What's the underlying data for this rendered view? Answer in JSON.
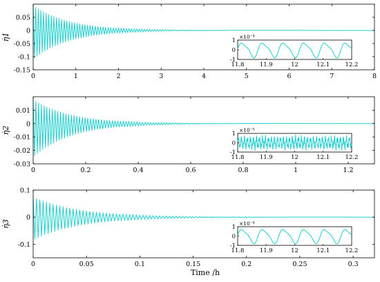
{
  "figure": {
    "xlabel": "Time /h",
    "colors": {
      "signal": "#1dcfcf",
      "axes": "#000000",
      "background": "#ffffff"
    }
  },
  "chart_data": [
    {
      "type": "line",
      "ylabel": "η̇1",
      "xlim": [
        0,
        8
      ],
      "ylim": [
        -0.15,
        0.1
      ],
      "xticks": [
        "0",
        "1",
        "2",
        "3",
        "4",
        "5",
        "6",
        "7",
        "8"
      ],
      "yticks": [
        "-0.15",
        "-0.1",
        "-0.05",
        "0",
        "0.05"
      ],
      "yticks_values": [
        -0.15,
        -0.1,
        -0.05,
        0,
        0.05
      ],
      "signal": {
        "shape": "decaying oscillation",
        "initial_peak_positive": 0.095,
        "initial_peak_negative": -0.11,
        "settle_time": 3.5
      },
      "inset": {
        "xlim": [
          11.8,
          12.2
        ],
        "ylim": [
          -1,
          1
        ],
        "exponent": "×10⁻⁴",
        "xticks": [
          "11.8",
          "11.9",
          "12",
          "12.1",
          "12.2"
        ],
        "yticks": [
          "1",
          "0",
          "-1"
        ],
        "signal": {
          "shape": "periodic wave",
          "amplitude": 0.7,
          "cycles": 5.5
        }
      }
    },
    {
      "type": "line",
      "ylabel": "η̇2",
      "xlim": [
        0,
        1.3
      ],
      "ylim": [
        -0.03,
        0.02
      ],
      "xticks": [
        "0",
        "0.2",
        "0.4",
        "0.6",
        "0.8",
        "1",
        "1.2"
      ],
      "xticks_values": [
        0,
        0.2,
        0.4,
        0.6,
        0.8,
        1.0,
        1.2
      ],
      "yticks": [
        "0.01",
        "0",
        "-0.01",
        "-0.02",
        "-0.03"
      ],
      "yticks_values": [
        0.01,
        0,
        -0.01,
        -0.02,
        -0.03
      ],
      "signal": {
        "shape": "decaying oscillation",
        "initial_peak_positive": 0.018,
        "initial_peak_negative": -0.025,
        "settle_time": 0.6
      },
      "inset": {
        "xlim": [
          11.8,
          12.2
        ],
        "ylim": [
          -1,
          1
        ],
        "exponent": "×10⁻⁵",
        "xticks": [
          "11.8",
          "11.9",
          "12",
          "12.1",
          "12.2"
        ],
        "yticks": [
          "1",
          "0",
          "-1"
        ],
        "signal": {
          "shape": "dense noisy oscillation",
          "amplitude": 0.8,
          "cycles": 38
        }
      }
    },
    {
      "type": "line",
      "ylabel": "η̇3",
      "xlim": [
        0,
        0.32
      ],
      "ylim": [
        -0.15,
        0.1
      ],
      "xticks": [
        "0",
        "0.05",
        "0.1",
        "0.15",
        "0.2",
        "0.25",
        "0.3"
      ],
      "xticks_values": [
        0,
        0.05,
        0.1,
        0.15,
        0.2,
        0.25,
        0.3
      ],
      "yticks": [
        "0.1",
        "0",
        "-0.1"
      ],
      "yticks_values": [
        0.1,
        0,
        -0.1
      ],
      "signal": {
        "shape": "decaying oscillation",
        "initial_peak_positive": 0.075,
        "initial_peak_negative": -0.085,
        "settle_time": 0.18
      },
      "inset": {
        "xlim": [
          11.8,
          12.2
        ],
        "ylim": [
          -1,
          1
        ],
        "exponent": "×10⁻⁴",
        "xticks": [
          "11.8",
          "11.9",
          "12",
          "12.1",
          "12.2"
        ],
        "yticks": [
          "1",
          "0",
          "-1"
        ],
        "signal": {
          "shape": "periodic wave",
          "amplitude": 0.7,
          "cycles": 5.5
        }
      }
    }
  ]
}
